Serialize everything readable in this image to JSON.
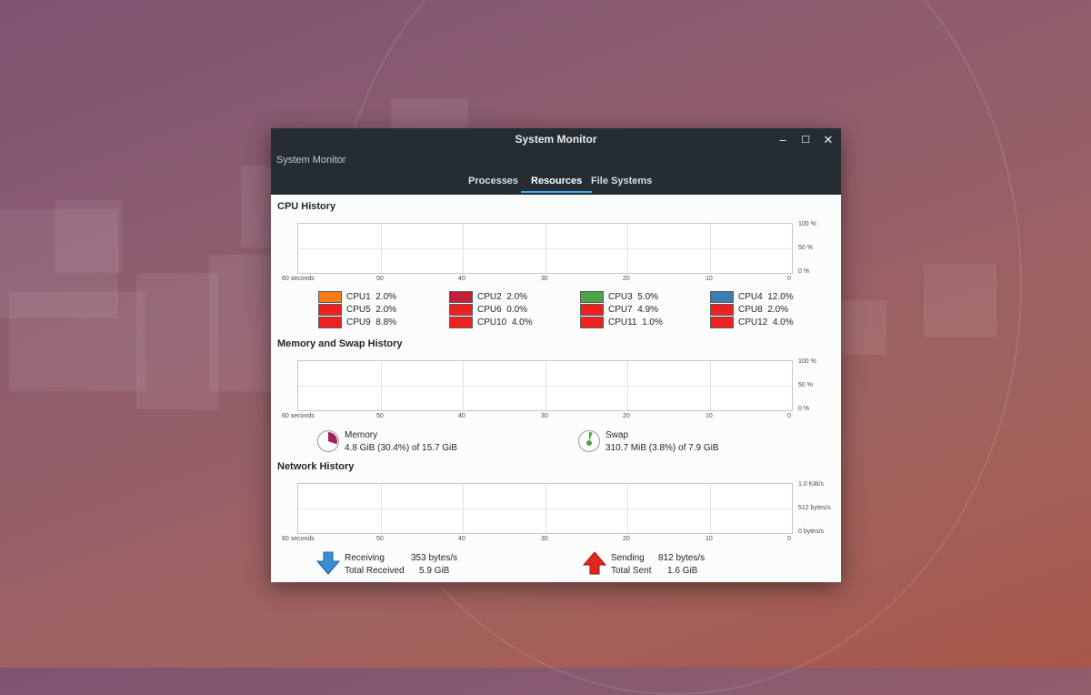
{
  "window": {
    "title": "System Monitor",
    "subtitle": "System Monitor",
    "controls": {
      "minimize": "–",
      "maximize": "☐",
      "close": "✕"
    },
    "tabs": [
      {
        "label": "Processes",
        "active": false
      },
      {
        "label": "Resources",
        "active": true
      },
      {
        "label": "File Systems",
        "active": false
      }
    ],
    "accent_color": "#3daee9"
  },
  "x_ticks": [
    "60 seconds",
    "50",
    "40",
    "30",
    "20",
    "10",
    "0"
  ],
  "cpu": {
    "title": "CPU History",
    "y_ticks": [
      "100 %",
      "50 %",
      "0 %"
    ],
    "cores": [
      {
        "label": "CPU1",
        "value": "2.0%",
        "color": "#f67e1a"
      },
      {
        "label": "CPU2",
        "value": "2.0%",
        "color": "#c31f3a"
      },
      {
        "label": "CPU3",
        "value": "5.0%",
        "color": "#4ca445"
      },
      {
        "label": "CPU4",
        "value": "12.0%",
        "color": "#3a7fb4"
      },
      {
        "label": "CPU5",
        "value": "2.0%",
        "color": "#ee2121"
      },
      {
        "label": "CPU6",
        "value": "0.0%",
        "color": "#ee2121"
      },
      {
        "label": "CPU7",
        "value": "4.9%",
        "color": "#ee2121"
      },
      {
        "label": "CPU8",
        "value": "2.0%",
        "color": "#ee2121"
      },
      {
        "label": "CPU9",
        "value": "8.8%",
        "color": "#ee2121"
      },
      {
        "label": "CPU10",
        "value": "4.0%",
        "color": "#ee2121"
      },
      {
        "label": "CPU11",
        "value": "1.0%",
        "color": "#ee2121"
      },
      {
        "label": "CPU12",
        "value": "4.0%",
        "color": "#ee2121"
      }
    ]
  },
  "memory": {
    "title": "Memory and Swap History",
    "y_ticks": [
      "100 %",
      "50 %",
      "0 %"
    ],
    "memory_label": "Memory",
    "memory_value": "4.8 GiB (30.4%) of 15.7 GiB",
    "memory_color": "#a0245a",
    "memory_fraction": 0.304,
    "swap_label": "Swap",
    "swap_value": "310.7 MiB (3.8%) of 7.9 GiB",
    "swap_color": "#4ca445",
    "swap_fraction": 0.038
  },
  "network": {
    "title": "Network History",
    "y_ticks": [
      "1.0 KiB/s",
      "512 bytes/s",
      "0 bytes/s"
    ],
    "receiving_label": "Receiving",
    "receiving_value": "353 bytes/s",
    "total_received_label": "Total Received",
    "total_received_value": "5.9 GiB",
    "sending_label": "Sending",
    "sending_value": "812 bytes/s",
    "total_sent_label": "Total Sent",
    "total_sent_value": "1.6 GiB",
    "receive_color": "#3a8ed4",
    "send_color": "#e3261e"
  }
}
